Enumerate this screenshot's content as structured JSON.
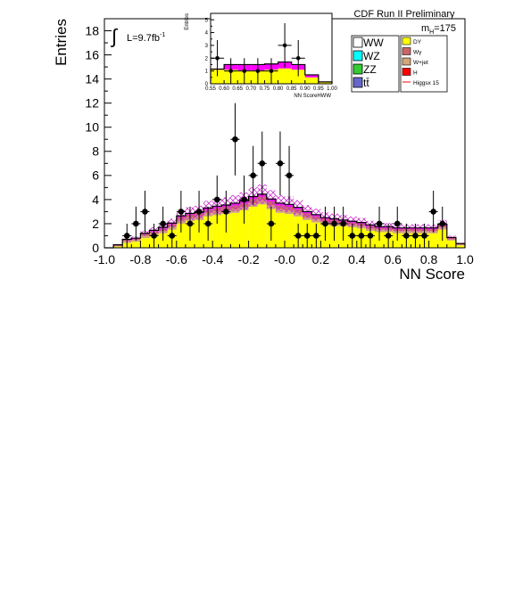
{
  "chart_data": [
    {
      "type": "bar",
      "stacked": true,
      "xlabel": "NN Score",
      "ylabel": "Entries",
      "xlim": [
        -1.0,
        1.0
      ],
      "ylim": [
        0,
        19
      ],
      "x_ticks": [
        -1.0,
        -0.8,
        -0.6,
        -0.4,
        -0.2,
        -0.0,
        0.2,
        0.4,
        0.6,
        0.8,
        1.0
      ],
      "x_tick_labels": [
        "-1.0",
        "-0.8",
        "-0.6",
        "-0.4",
        "-0.2",
        "-0.0",
        "0.2",
        "0.4",
        "0.6",
        "0.8",
        "1.0"
      ],
      "y_ticks": [
        0,
        2,
        4,
        6,
        8,
        10,
        12,
        14,
        16,
        18
      ],
      "bin_edges": [
        -1.0,
        -0.95,
        -0.9,
        -0.85,
        -0.8,
        -0.75,
        -0.7,
        -0.65,
        -0.6,
        -0.55,
        -0.5,
        -0.45,
        -0.4,
        -0.35,
        -0.3,
        -0.25,
        -0.2,
        -0.15,
        -0.1,
        -0.05,
        0.0,
        0.05,
        0.1,
        0.15,
        0.2,
        0.25,
        0.3,
        0.35,
        0.4,
        0.45,
        0.5,
        0.55,
        0.6,
        0.65,
        0.7,
        0.75,
        0.8,
        0.85,
        0.9,
        0.95,
        1.0
      ],
      "series": [
        {
          "name": "DY",
          "color": "#ffff00",
          "values": [
            0,
            0.1,
            0.4,
            0.5,
            0.8,
            1.0,
            1.2,
            1.5,
            2.0,
            2.2,
            2.3,
            2.6,
            2.7,
            2.8,
            2.9,
            3.1,
            3.4,
            3.6,
            3.2,
            2.9,
            2.8,
            2.6,
            2.3,
            2.1,
            1.9,
            1.8,
            1.8,
            1.7,
            1.6,
            1.4,
            1.3,
            1.3,
            1.2,
            1.2,
            1.2,
            1.2,
            1.2,
            1.5,
            0.6,
            0.2
          ]
        },
        {
          "name": "W+jet",
          "color": "#d2a679",
          "values": [
            0,
            0.05,
            0.15,
            0.15,
            0.2,
            0.2,
            0.2,
            0.25,
            0.3,
            0.3,
            0.3,
            0.3,
            0.3,
            0.3,
            0.3,
            0.3,
            0.3,
            0.3,
            0.3,
            0.3,
            0.3,
            0.3,
            0.25,
            0.25,
            0.25,
            0.25,
            0.2,
            0.2,
            0.2,
            0.2,
            0.2,
            0.2,
            0.2,
            0.2,
            0.2,
            0.2,
            0.2,
            0.2,
            0.1,
            0.05
          ]
        },
        {
          "name": "Wγ",
          "color": "#cc6666",
          "values": [
            0,
            0.05,
            0.1,
            0.1,
            0.15,
            0.15,
            0.2,
            0.2,
            0.25,
            0.25,
            0.25,
            0.25,
            0.3,
            0.3,
            0.3,
            0.3,
            0.35,
            0.35,
            0.35,
            0.3,
            0.3,
            0.3,
            0.3,
            0.25,
            0.25,
            0.25,
            0.2,
            0.2,
            0.2,
            0.2,
            0.15,
            0.15,
            0.15,
            0.15,
            0.15,
            0.15,
            0.15,
            0.15,
            0.1,
            0.05
          ]
        },
        {
          "name": "Higgsx 15",
          "color": "#ff00ff",
          "values": [
            0,
            0.05,
            0.05,
            0.05,
            0.05,
            0.1,
            0.1,
            0.1,
            0.1,
            0.1,
            0.1,
            0.15,
            0.15,
            0.15,
            0.2,
            0.2,
            0.2,
            0.2,
            0.2,
            0.2,
            0.2,
            0.15,
            0.15,
            0.15,
            0.1,
            0.1,
            0.1,
            0.1,
            0.1,
            0.1,
            0.1,
            0.1,
            0.1,
            0.1,
            0.1,
            0.1,
            0.1,
            0.1,
            0.05,
            0.05
          ]
        }
      ],
      "uncertainty_band": {
        "color": "#cc33cc",
        "relative": 0.18
      },
      "data_points": {
        "x": [
          -0.875,
          -0.825,
          -0.775,
          -0.725,
          -0.675,
          -0.625,
          -0.575,
          -0.525,
          -0.475,
          -0.425,
          -0.375,
          -0.325,
          -0.275,
          -0.225,
          -0.175,
          -0.125,
          -0.075,
          -0.025,
          0.025,
          0.075,
          0.125,
          0.175,
          0.225,
          0.275,
          0.325,
          0.375,
          0.425,
          0.475,
          0.525,
          0.575,
          0.625,
          0.675,
          0.725,
          0.775,
          0.825,
          0.875,
          0.925
        ],
        "y": [
          1,
          2,
          3,
          1,
          2,
          1,
          3,
          2,
          3,
          2,
          4,
          3,
          9,
          4,
          6,
          7,
          2,
          7,
          6,
          1,
          1,
          1,
          2,
          2,
          2,
          1,
          1,
          1,
          2,
          1,
          2,
          1,
          1,
          1,
          3,
          2,
          0
        ]
      },
      "legend_position": "top-right",
      "annotations": {
        "luminosity": "L=9.7fb",
        "luminosity_sup": "-1",
        "run": "CDF Run II Preliminary",
        "mass_label_main": "m",
        "mass_label_sub": "H",
        "mass_value": "=175"
      },
      "legend": {
        "background_entries": [
          {
            "label": "WW",
            "color": "#ffffff"
          },
          {
            "label": "WZ",
            "color": "#00ffff"
          },
          {
            "label": "ZZ",
            "color": "#33cc33"
          },
          {
            "label": "tt̄",
            "color": "#6666cc"
          }
        ],
        "other_entries": [
          {
            "label": "DY",
            "color": "#ffff00",
            "kind": "box"
          },
          {
            "label": "Wγ",
            "color": "#cc6666",
            "kind": "box"
          },
          {
            "label": "W+jet",
            "color": "#d2a679",
            "kind": "box"
          },
          {
            "label": "H",
            "color": "#ff0000",
            "kind": "box"
          },
          {
            "label": "Higgsx 15",
            "color": "#ff0000",
            "kind": "line"
          }
        ]
      }
    },
    {
      "type": "bar",
      "stacked": true,
      "inset": true,
      "xlabel": "NN ScoreHWW",
      "ylabel": "Entries",
      "xlim": [
        0.55,
        1.0
      ],
      "ylim": [
        0,
        5.5
      ],
      "x_ticks": [
        0.55,
        0.6,
        0.65,
        0.7,
        0.75,
        0.8,
        0.85,
        0.9,
        0.95,
        1.0
      ],
      "x_tick_labels": [
        "0.55",
        "0.60",
        "0.65",
        "0.70",
        "0.75",
        "0.80",
        "0.85",
        "0.90",
        "0.95",
        "1.00"
      ],
      "y_ticks": [
        0,
        1,
        2,
        3,
        4,
        5
      ],
      "bin_edges": [
        0.55,
        0.6,
        0.65,
        0.7,
        0.75,
        0.8,
        0.85,
        0.9,
        0.95,
        1.0
      ],
      "series": [
        {
          "name": "DY",
          "color": "#ffff00",
          "values": [
            1.1,
            1.1,
            1.05,
            1.05,
            1.1,
            1.2,
            1.1,
            0.5,
            0.1
          ]
        },
        {
          "name": "Higgsx 15",
          "color": "#ff00ff",
          "values": [
            0.05,
            0.4,
            0.45,
            0.45,
            0.45,
            0.5,
            0.4,
            0.2,
            0.05
          ]
        }
      ],
      "data_points": {
        "x": [
          0.575,
          0.625,
          0.675,
          0.725,
          0.775,
          0.825,
          0.875,
          0.925,
          0.975
        ],
        "y": [
          2,
          1,
          1,
          1,
          1,
          3,
          2,
          0,
          0
        ]
      }
    }
  ]
}
